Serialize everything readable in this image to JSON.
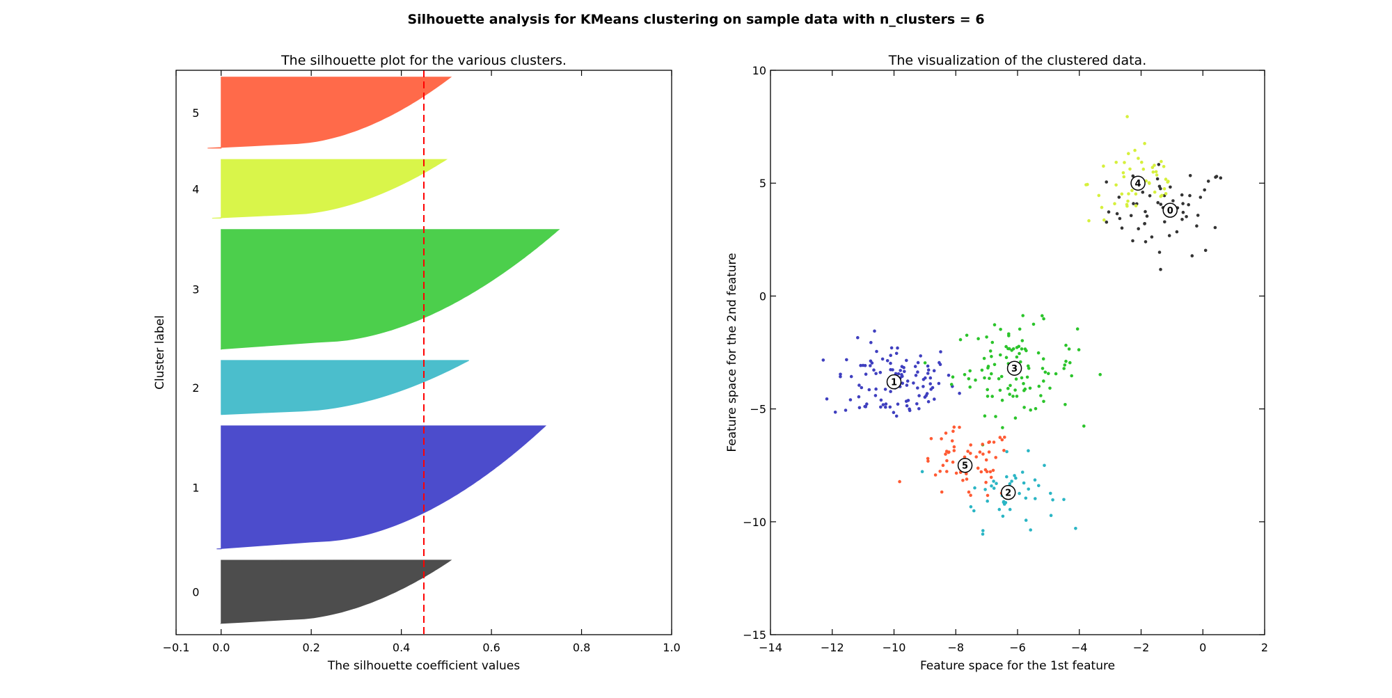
{
  "suptitle": "Silhouette analysis for KMeans clustering on sample data with n_clusters = 6",
  "chart_data": [
    {
      "type": "area",
      "title": "The silhouette plot for the various clusters.",
      "xlabel": "The silhouette coefficient values",
      "ylabel": "Cluster label",
      "xlim": [
        -0.1,
        1.0
      ],
      "xticks": [
        -0.1,
        0.0,
        0.2,
        0.4,
        0.6,
        0.8,
        1.0
      ],
      "xtick_labels": [
        "−0.1",
        "0.0",
        "0.2",
        "0.4",
        "0.6",
        "0.8",
        "1.0"
      ],
      "ylim": [
        0,
        500
      ],
      "average_silhouette": 0.45,
      "clusters": [
        {
          "label": "0",
          "color": "#4d4d4d",
          "y_lower": 10,
          "y_upper": 66,
          "max": 0.51,
          "min": 0.0
        },
        {
          "label": "1",
          "color": "#4c4ccc",
          "y_lower": 76,
          "y_upper": 185,
          "max": 0.72,
          "min": -0.01
        },
        {
          "label": "2",
          "color": "#4bbecc",
          "y_lower": 195,
          "y_upper": 243,
          "max": 0.55,
          "min": 0.0
        },
        {
          "label": "3",
          "color": "#4ccf4c",
          "y_lower": 253,
          "y_upper": 359,
          "max": 0.75,
          "min": 0.0
        },
        {
          "label": "4",
          "color": "#d9f54a",
          "y_lower": 369,
          "y_upper": 421,
          "max": 0.5,
          "min": -0.02
        },
        {
          "label": "5",
          "color": "#ff6a4a",
          "y_lower": 431,
          "y_upper": 494,
          "max": 0.51,
          "min": -0.03
        }
      ]
    },
    {
      "type": "scatter",
      "title": "The visualization of the clustered data.",
      "xlabel": "Feature space for the 1st feature",
      "ylabel": "Feature space for the 2nd feature",
      "xlim": [
        -14,
        2
      ],
      "ylim": [
        -15,
        10
      ],
      "xticks": [
        -14,
        -12,
        -10,
        -8,
        -6,
        -4,
        -2,
        0,
        2
      ],
      "xtick_labels": [
        "−14",
        "−12",
        "−10",
        "−8",
        "−6",
        "−4",
        "−2",
        "0",
        "2"
      ],
      "yticks": [
        -15,
        -10,
        -5,
        0,
        5,
        10
      ],
      "ytick_labels": [
        "−15",
        "−10",
        "−5",
        "0",
        "5",
        "10"
      ],
      "clusters": [
        {
          "label": "0",
          "color": "#333333",
          "center": [
            -1.06,
            3.8
          ],
          "spread": [
            1.0,
            1.0
          ],
          "n": 56
        },
        {
          "label": "1",
          "color": "#3f3fbf",
          "center": [
            -10.0,
            -3.8
          ],
          "spread": [
            1.0,
            0.9
          ],
          "n": 109
        },
        {
          "label": "2",
          "color": "#2ab5c4",
          "center": [
            -6.3,
            -8.7
          ],
          "spread": [
            0.8,
            0.8
          ],
          "n": 48
        },
        {
          "label": "3",
          "color": "#2bc42b",
          "center": [
            -6.1,
            -3.2
          ],
          "spread": [
            1.0,
            1.0
          ],
          "n": 106
        },
        {
          "label": "4",
          "color": "#d6f03c",
          "center": [
            -2.1,
            5.0
          ],
          "spread": [
            0.8,
            0.9
          ],
          "n": 52
        },
        {
          "label": "5",
          "color": "#ff5a33",
          "center": [
            -7.7,
            -7.5
          ],
          "spread": [
            0.8,
            0.8
          ],
          "n": 63
        }
      ]
    }
  ]
}
